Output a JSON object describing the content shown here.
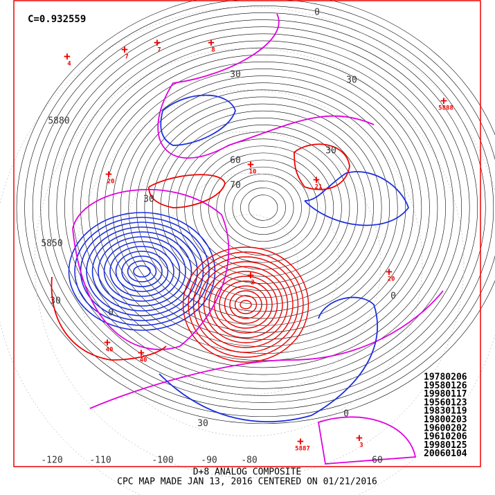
{
  "header": {
    "correlation": "C=0.932559"
  },
  "analog_dates": [
    "19780206",
    "19580126",
    "19980117",
    "19560123",
    "19830119",
    "19800203",
    "19600202",
    "19610206",
    "19980125",
    "20060104"
  ],
  "footer": {
    "line1": "D+8 ANALOG COMPOSITE",
    "line2": "CPC MAP MADE JAN 13, 2016 CENTERED ON 01/21/2016"
  },
  "longitude_labels": [
    "-120",
    "-110",
    "-100",
    "-90",
    "-80",
    "60"
  ],
  "contour_labels": [
    "5880",
    "5850",
    "30",
    "30",
    "30",
    "0",
    "0",
    "30",
    "60",
    "70",
    "0",
    "30",
    "0",
    "30"
  ],
  "anomaly_labels": [
    "40",
    "40",
    "20",
    "7",
    "7",
    "4",
    "8",
    "10",
    "21",
    "20",
    "2",
    "3",
    "5887",
    "5888"
  ]
}
